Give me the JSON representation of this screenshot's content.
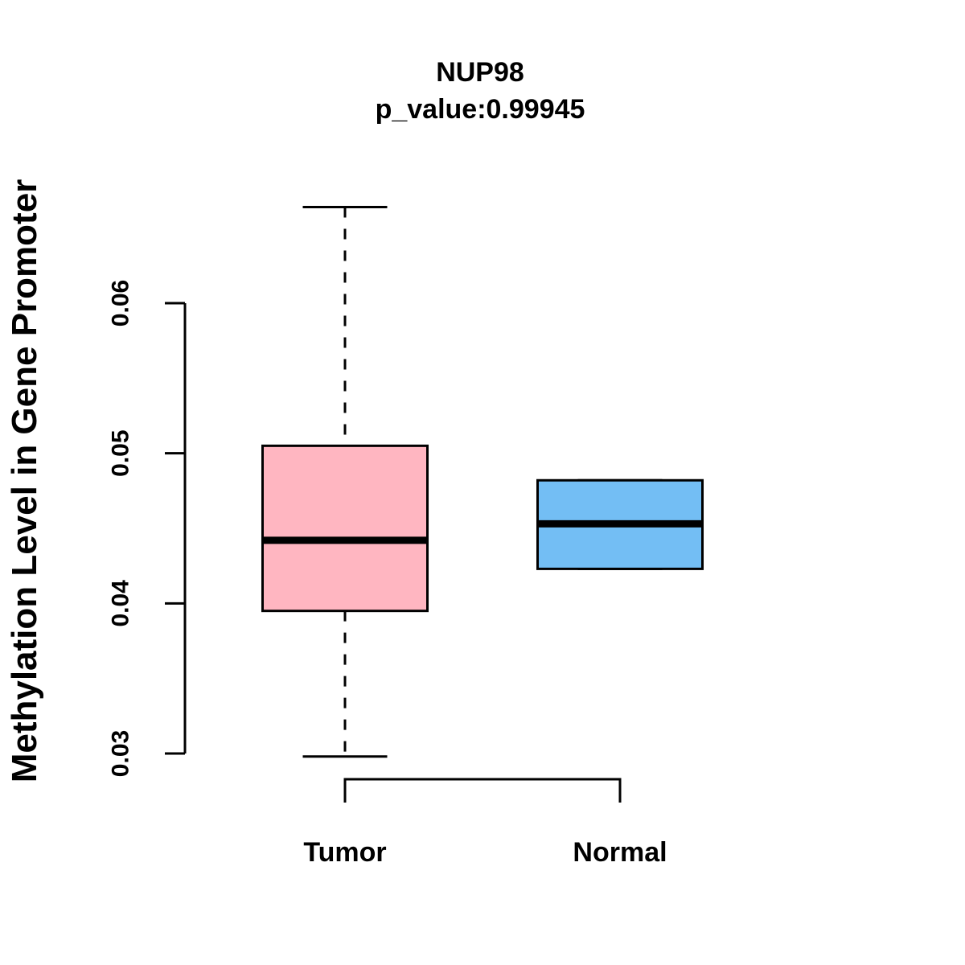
{
  "chart_data": {
    "type": "boxplot",
    "title": "NUP98",
    "subtitle": "p_value:0.99945",
    "p_value": 0.99945,
    "ylabel": "Methylation Level in Gene Promoter",
    "xlabel": "",
    "categories": [
      "Tumor",
      "Normal"
    ],
    "yticks": [
      "0.03",
      "0.04",
      "0.05",
      "0.06"
    ],
    "ylim": [
      0.0295,
      0.0665
    ],
    "grid": false,
    "legend": false,
    "series": [
      {
        "name": "Tumor",
        "color": "#FFB6C1",
        "whisker_low": 0.0298,
        "q1": 0.0395,
        "median": 0.0442,
        "q3": 0.0505,
        "whisker_high": 0.0664,
        "outliers": []
      },
      {
        "name": "Normal",
        "color": "#73BEF4",
        "whisker_low": 0.0423,
        "q1": 0.0423,
        "median": 0.0453,
        "q3": 0.0482,
        "whisker_high": 0.0482,
        "outliers": []
      }
    ]
  },
  "colors": {
    "background": "#FFFFFF",
    "line": "#000000",
    "tumor_fill": "#FFB6C1",
    "normal_fill": "#73BEF4"
  }
}
